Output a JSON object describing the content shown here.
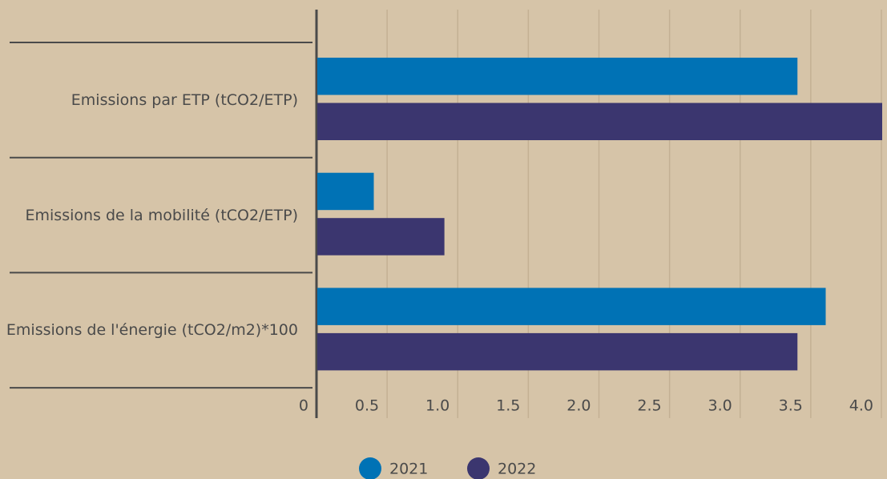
{
  "chart_data": {
    "type": "bar",
    "orientation": "horizontal",
    "categories": [
      "Emissions par ETP (tCO2/ETP)",
      "Emissions de la mobilité (tCO2/ETP)",
      "Emissions de l'énergie (tCO2/m2)*100"
    ],
    "series": [
      {
        "name": "2021",
        "color": "#0072b5",
        "values": [
          3.4,
          0.4,
          3.6
        ]
      },
      {
        "name": "2022",
        "color": "#3b366f",
        "values": [
          4.0,
          0.9,
          3.4
        ]
      }
    ],
    "xlim": [
      0,
      4.0
    ],
    "xticks": [
      0,
      0.5,
      {
        "value": 1,
        "label": "1.0"
      },
      1.5,
      {
        "value": 2,
        "label": "2.0"
      },
      2.5,
      {
        "value": 3,
        "label": "3.0"
      },
      3.5,
      {
        "value": 4,
        "label": "4.0"
      }
    ],
    "grid": true,
    "legend": "bottom"
  }
}
